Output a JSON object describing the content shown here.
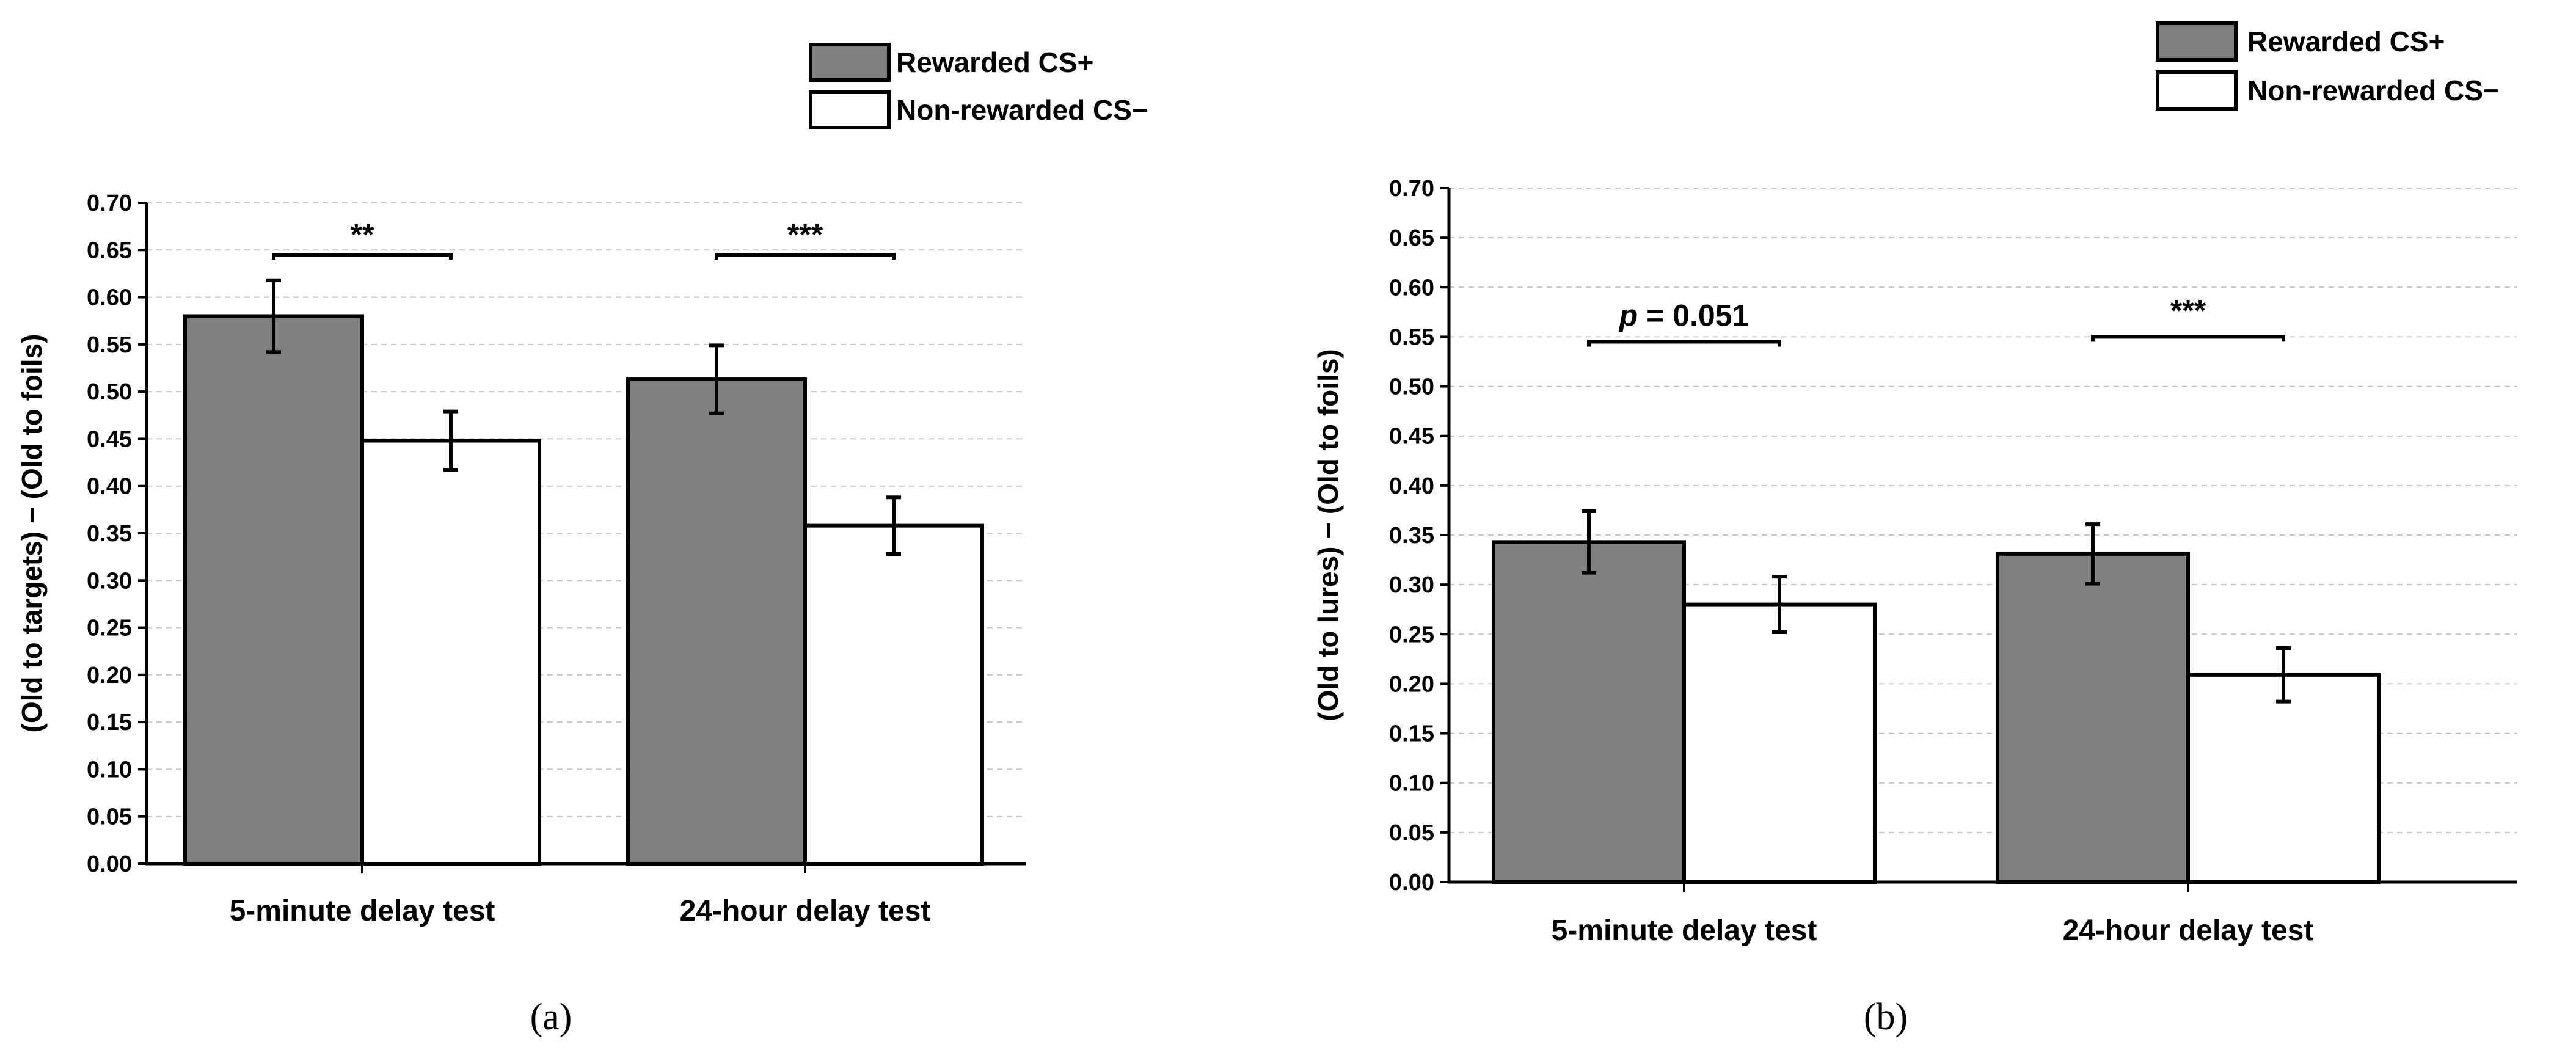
{
  "chart_data": [
    {
      "type": "bar",
      "panel_label": "(a)",
      "title": "",
      "xlabel": "",
      "ylabel": "(Old to targets) − (Old to foils)",
      "ylim": [
        0,
        0.7
      ],
      "yticks": [
        "0.00",
        "0.05",
        "0.10",
        "0.15",
        "0.20",
        "0.25",
        "0.30",
        "0.35",
        "0.40",
        "0.45",
        "0.50",
        "0.55",
        "0.60",
        "0.65",
        "0.70"
      ],
      "categories": [
        "5-minute delay test",
        "24-hour delay test"
      ],
      "series": [
        {
          "name": "Rewarded CS+",
          "color": "#808080",
          "values": [
            0.58,
            0.513
          ],
          "errors": [
            0.038,
            0.036
          ]
        },
        {
          "name": "Non-rewarded CS−",
          "color": "#ffffff",
          "values": [
            0.448,
            0.358
          ],
          "errors": [
            0.031,
            0.03
          ]
        }
      ],
      "significance": [
        "**",
        "***"
      ],
      "significance_levels": [
        0.645,
        0.645
      ],
      "grid": "horizontal dashed",
      "legend": "top-right"
    },
    {
      "type": "bar",
      "panel_label": "(b)",
      "title": "",
      "xlabel": "",
      "ylabel": "(Old to lures) − (Old to foils)",
      "ylim": [
        0,
        0.7
      ],
      "yticks": [
        "0.00",
        "0.05",
        "0.10",
        "0.15",
        "0.20",
        "0.25",
        "0.30",
        "0.35",
        "0.40",
        "0.45",
        "0.50",
        "0.55",
        "0.60",
        "0.65",
        "0.70"
      ],
      "categories": [
        "5-minute delay test",
        "24-hour delay test"
      ],
      "series": [
        {
          "name": "Rewarded CS+",
          "color": "#808080",
          "values": [
            0.343,
            0.331
          ],
          "errors": [
            0.031,
            0.03
          ]
        },
        {
          "name": "Non-rewarded CS−",
          "color": "#ffffff",
          "values": [
            0.28,
            0.209
          ],
          "errors": [
            0.028,
            0.027
          ]
        }
      ],
      "significance": [
        "p = 0.051",
        "***"
      ],
      "significance_levels": [
        0.545,
        0.55
      ],
      "grid": "horizontal dashed",
      "legend": "top-right"
    }
  ]
}
